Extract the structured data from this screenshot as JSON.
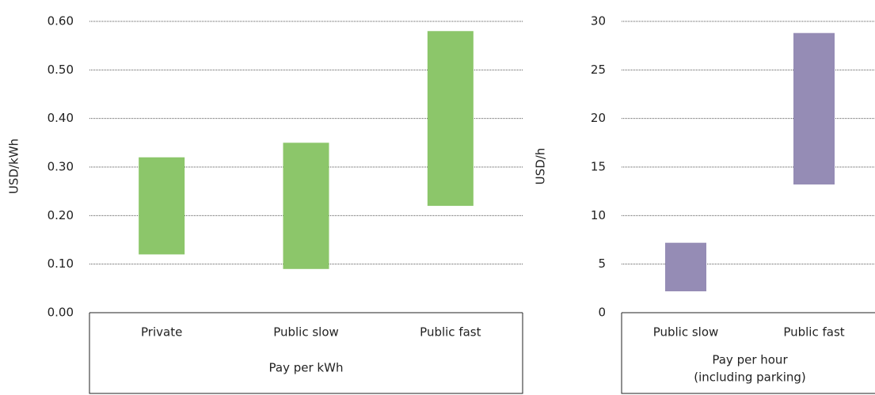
{
  "chart_data": [
    {
      "type": "range-bar",
      "y_label": "USD/kWh",
      "group_label": [
        "Pay per kWh"
      ],
      "categories": [
        "Private",
        "Public slow",
        "Public fast"
      ],
      "low": [
        0.12,
        0.09,
        0.22
      ],
      "high": [
        0.32,
        0.35,
        0.58
      ],
      "color": "#8cc66a",
      "ylim": [
        0,
        0.6
      ],
      "yticks": [
        {
          "value": 0,
          "label": "0.00"
        },
        {
          "value": 0.1,
          "label": "0.10"
        },
        {
          "value": 0.2,
          "label": "0.20"
        },
        {
          "value": 0.3,
          "label": "0.30"
        },
        {
          "value": 0.4,
          "label": "0.40"
        },
        {
          "value": 0.5,
          "label": "0.50"
        },
        {
          "value": 0.6,
          "label": "0.60"
        }
      ],
      "grid": true
    },
    {
      "type": "range-bar",
      "y_label": "USD/h",
      "group_label": [
        "Pay per hour",
        "(including parking)"
      ],
      "categories": [
        "Public slow",
        "Public fast"
      ],
      "low": [
        2.2,
        13.2
      ],
      "high": [
        7.2,
        28.8
      ],
      "color": "#958cb5",
      "ylim": [
        0,
        30
      ],
      "yticks": [
        0,
        5,
        10,
        15,
        20,
        25,
        30
      ],
      "grid": true
    }
  ]
}
